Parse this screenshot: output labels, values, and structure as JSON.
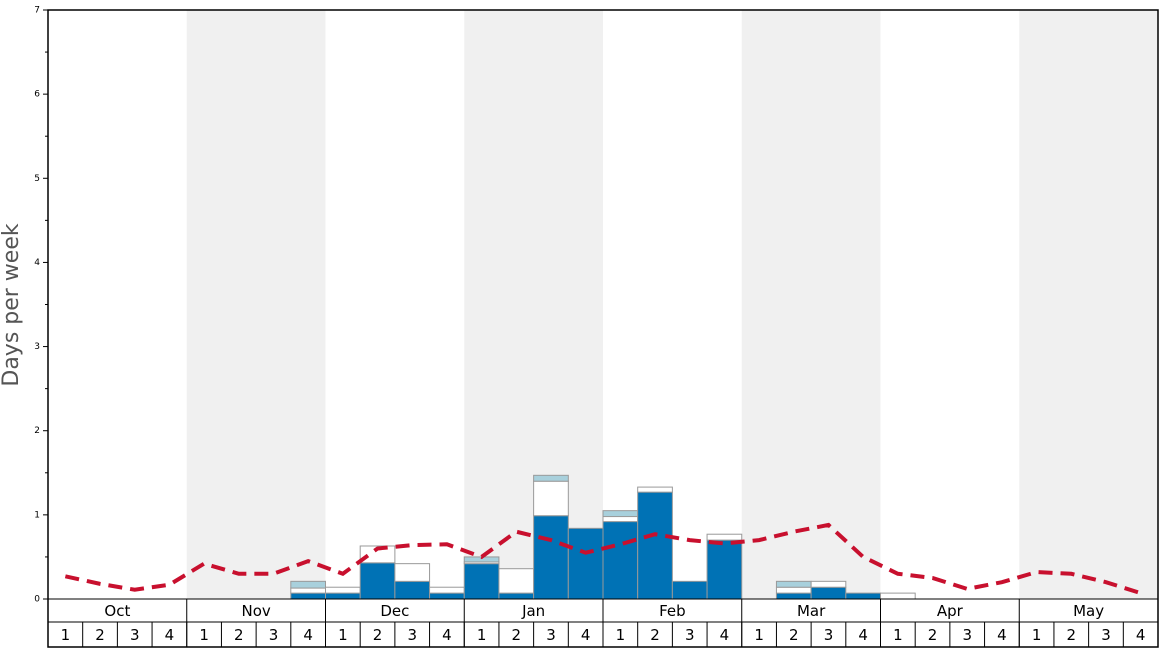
{
  "chart_data": {
    "type": "bar",
    "stacked": true,
    "ylabel": "Days per week",
    "months": [
      "Oct",
      "Nov",
      "Dec",
      "Jan",
      "Feb",
      "Mar",
      "Apr",
      "May"
    ],
    "shaded_months": [
      false,
      true,
      false,
      true,
      false,
      true,
      false,
      true
    ],
    "categories": [
      "1",
      "2",
      "3",
      "4",
      "1",
      "2",
      "3",
      "4",
      "1",
      "2",
      "3",
      "4",
      "1",
      "2",
      "3",
      "4",
      "1",
      "2",
      "3",
      "4",
      "1",
      "2",
      "3",
      "4",
      "1",
      "2",
      "3",
      "4",
      "1",
      "2",
      "3",
      "4"
    ],
    "series": [
      {
        "color": "#0072b5",
        "values": [
          0,
          0,
          0,
          0,
          0,
          0,
          0,
          0.07,
          0.07,
          0.43,
          0.21,
          0.07,
          0.42,
          0.07,
          0.99,
          0.84,
          0.92,
          1.27,
          0.21,
          0.7,
          0,
          0.07,
          0.14,
          0.07,
          0,
          0,
          0,
          0,
          0,
          0,
          0,
          0
        ]
      },
      {
        "color": "#ffffff",
        "values": [
          0,
          0,
          0,
          0,
          0,
          0,
          0,
          0.06,
          0.07,
          0.2,
          0.21,
          0.07,
          0.02,
          0.29,
          0.41,
          0,
          0.06,
          0.06,
          0,
          0.07,
          0,
          0.07,
          0.07,
          0,
          0.07,
          0,
          0,
          0,
          0,
          0,
          0,
          0
        ]
      },
      {
        "color": "#a8d0dc",
        "values": [
          0,
          0,
          0,
          0,
          0,
          0,
          0,
          0.08,
          0,
          0,
          0,
          0,
          0.06,
          0,
          0.07,
          0,
          0.07,
          0,
          0,
          0,
          0,
          0.07,
          0,
          0,
          0,
          0,
          0,
          0,
          0,
          0,
          0,
          0
        ]
      }
    ],
    "line": {
      "type": "line",
      "color": "#c8102e",
      "dashed": true,
      "values": [
        0.27,
        0.18,
        0.11,
        0.17,
        0.42,
        0.3,
        0.3,
        0.45,
        0.3,
        0.6,
        0.64,
        0.65,
        0.5,
        0.8,
        0.7,
        0.55,
        0.65,
        0.77,
        0.7,
        0.66,
        0.7,
        0.8,
        0.88,
        0.5,
        0.3,
        0.25,
        0.12,
        0.2,
        0.32,
        0.3,
        0.2,
        0.07
      ]
    },
    "ylim": [
      0,
      7
    ],
    "yticks": [
      0,
      1,
      2,
      3,
      4,
      5,
      6,
      7
    ],
    "yminorticks": [
      0.5,
      1.5,
      2.5,
      3.5,
      4.5,
      5.5,
      6.5
    ]
  }
}
